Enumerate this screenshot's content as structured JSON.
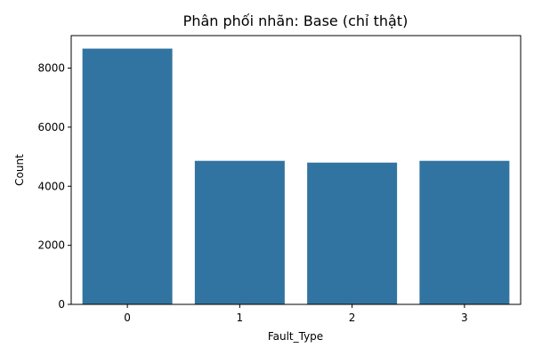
{
  "chart_data": {
    "type": "bar",
    "title": "Phân phối nhãn: Base (chỉ thật)",
    "xlabel": "Fault_Type",
    "ylabel": "Count",
    "categories": [
      "0",
      "1",
      "2",
      "3"
    ],
    "values": [
      8660,
      4860,
      4800,
      4860
    ],
    "ylim": [
      0,
      9100
    ],
    "yticks": [
      0,
      2000,
      4000,
      6000,
      8000
    ],
    "grid": false,
    "bar_color": "#3274a1"
  }
}
